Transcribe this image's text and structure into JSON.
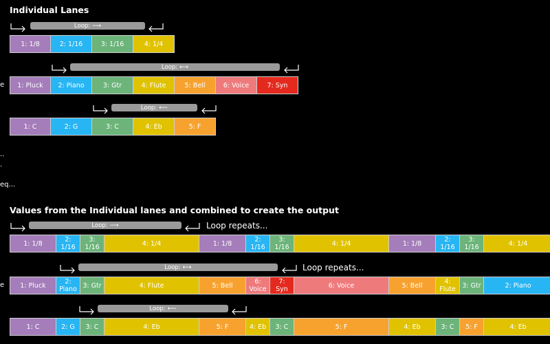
{
  "colors": {
    "purple": "#a47dba",
    "blue": "#28b5f3",
    "green": "#6cb47a",
    "yellow": "#e0c200",
    "orange": "#f7a22f",
    "pink": "#ee7a7c",
    "red": "#e42a1e",
    "loop_bar": "#9a9a9a"
  },
  "section1_title": "Individual Lanes",
  "section2_title": "Values from the Individual lanes and combined to create the output",
  "side_labels": [
    "e",
    "..",
    ".",
    "eq...",
    "e"
  ],
  "loops": {
    "lane1": {
      "label": "Loop:",
      "arrow": "⟶"
    },
    "lane2": {
      "label": "Loop:",
      "arrow": "⟷"
    },
    "lane3": {
      "label": "Loop:",
      "arrow": "⟵"
    },
    "out1": {
      "label": "Loop:",
      "arrow": "⟶"
    },
    "out2": {
      "label": "Loop:",
      "arrow": "⟷"
    },
    "out3": {
      "label": "Loop:",
      "arrow": "⟵"
    }
  },
  "repeat_text": {
    "out1": "Loop repeats...",
    "out2": "Loop repeats..."
  },
  "lanes": {
    "lane1": [
      {
        "text": "1: 1/8",
        "color": "purple"
      },
      {
        "text": "2: 1/16",
        "color": "blue"
      },
      {
        "text": "3: 1/16",
        "color": "green"
      },
      {
        "text": "4: 1/4",
        "color": "yellow"
      }
    ],
    "lane2": [
      {
        "text": "1: Pluck",
        "color": "purple"
      },
      {
        "text": "2: Piano",
        "color": "blue"
      },
      {
        "text": "3: Gtr",
        "color": "green"
      },
      {
        "text": "4: Flute",
        "color": "yellow"
      },
      {
        "text": "5: Bell",
        "color": "orange"
      },
      {
        "text": "6: Voice",
        "color": "pink"
      },
      {
        "text": "7: Syn",
        "color": "red"
      }
    ],
    "lane3": [
      {
        "text": "1: C",
        "color": "purple"
      },
      {
        "text": "2: G",
        "color": "blue"
      },
      {
        "text": "3: C",
        "color": "green"
      },
      {
        "text": "4: Eb",
        "color": "yellow"
      },
      {
        "text": "5: F",
        "color": "orange"
      }
    ],
    "out1": [
      {
        "text": "1: 1/8",
        "color": "purple"
      },
      {
        "text": "2:\n1/16",
        "color": "blue"
      },
      {
        "text": "3:\n1/16",
        "color": "green"
      },
      {
        "text": "4: 1/4",
        "color": "yellow"
      },
      {
        "text": "1: 1/8",
        "color": "purple"
      },
      {
        "text": "2:\n1/16",
        "color": "blue"
      },
      {
        "text": "3:\n1/16",
        "color": "green"
      },
      {
        "text": "4: 1/4",
        "color": "yellow"
      },
      {
        "text": "1: 1/8",
        "color": "purple"
      },
      {
        "text": "2:\n1/16",
        "color": "blue"
      },
      {
        "text": "3:\n1/16",
        "color": "green"
      },
      {
        "text": "4: 1/4",
        "color": "yellow"
      }
    ],
    "out2": [
      {
        "text": "1: Pluck",
        "color": "purple"
      },
      {
        "text": "2:\nPiano",
        "color": "blue"
      },
      {
        "text": "3: Gtr",
        "color": "green"
      },
      {
        "text": "4: Flute",
        "color": "yellow"
      },
      {
        "text": "5: Bell",
        "color": "orange"
      },
      {
        "text": "6:\nVoice",
        "color": "pink"
      },
      {
        "text": "7:\nSyn",
        "color": "red"
      },
      {
        "text": "6: Voice",
        "color": "pink"
      },
      {
        "text": "5: Bell",
        "color": "orange"
      },
      {
        "text": "4:\nFlute",
        "color": "yellow"
      },
      {
        "text": "3: Gtr",
        "color": "green"
      },
      {
        "text": "2: Piano",
        "color": "blue"
      }
    ],
    "out3": [
      {
        "text": "1: C",
        "color": "purple"
      },
      {
        "text": "2: G",
        "color": "blue"
      },
      {
        "text": "3: C",
        "color": "green"
      },
      {
        "text": "4: Eb",
        "color": "yellow"
      },
      {
        "text": "5: F",
        "color": "orange"
      },
      {
        "text": "4: Eb",
        "color": "yellow"
      },
      {
        "text": "3: C",
        "color": "green"
      },
      {
        "text": "5: F",
        "color": "orange"
      },
      {
        "text": "4: Eb",
        "color": "yellow"
      },
      {
        "text": "3: C",
        "color": "green"
      },
      {
        "text": "5: F",
        "color": "orange"
      },
      {
        "text": "4: Eb",
        "color": "yellow"
      }
    ]
  }
}
